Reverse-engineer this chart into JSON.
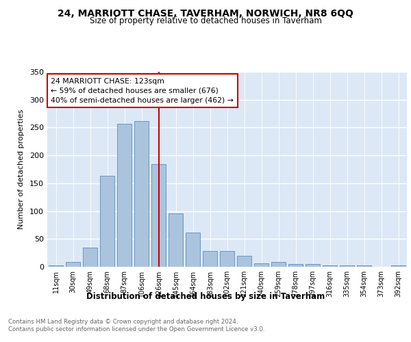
{
  "title": "24, MARRIOTT CHASE, TAVERHAM, NORWICH, NR8 6QQ",
  "subtitle": "Size of property relative to detached houses in Taverham",
  "xlabel": "Distribution of detached houses by size in Taverham",
  "ylabel": "Number of detached properties",
  "bar_labels": [
    "11sqm",
    "30sqm",
    "49sqm",
    "68sqm",
    "87sqm",
    "106sqm",
    "126sqm",
    "145sqm",
    "164sqm",
    "183sqm",
    "202sqm",
    "221sqm",
    "240sqm",
    "259sqm",
    "278sqm",
    "297sqm",
    "316sqm",
    "335sqm",
    "354sqm",
    "373sqm",
    "392sqm"
  ],
  "bar_values": [
    2,
    8,
    35,
    163,
    257,
    261,
    184,
    96,
    61,
    28,
    28,
    20,
    6,
    9,
    5,
    5,
    2,
    2,
    2,
    0,
    3
  ],
  "bar_color": "#aac4dd",
  "bar_edge_color": "#5b8db8",
  "vline_x": 6,
  "vline_color": "#cc0000",
  "annotation_text": "24 MARRIOTT CHASE: 123sqm\n← 59% of detached houses are smaller (676)\n40% of semi-detached houses are larger (462) →",
  "annotation_box_color": "#ffffff",
  "annotation_box_edge": "#cc0000",
  "ylim": [
    0,
    350
  ],
  "yticks": [
    0,
    50,
    100,
    150,
    200,
    250,
    300,
    350
  ],
  "plot_bg_color": "#dce8f5",
  "footer_line1": "Contains HM Land Registry data © Crown copyright and database right 2024.",
  "footer_line2": "Contains public sector information licensed under the Open Government Licence v3.0."
}
